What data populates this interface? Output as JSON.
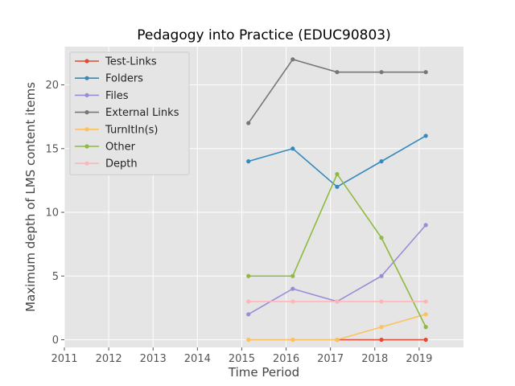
{
  "chart_data": {
    "type": "line",
    "title": "Pedagogy into Practice (EDUC90803)",
    "xlabel": "Time Period",
    "ylabel": "Maximum depth of LMS content items",
    "xlim": [
      2011,
      2020
    ],
    "ylim": [
      -0.6,
      23.0
    ],
    "x_ticks": [
      "2011",
      "2012",
      "2013",
      "2014",
      "2015",
      "2016",
      "2017",
      "2018",
      "2019"
    ],
    "y_ticks": [
      "0",
      "5",
      "10",
      "15",
      "20"
    ],
    "x": [
      2015.15,
      2016.15,
      2017.15,
      2018.15,
      2019.15
    ],
    "grid": true,
    "legend_position": "upper-left",
    "series": [
      {
        "name": "Test-Links",
        "color": "#e24a33",
        "values": [
          null,
          null,
          0,
          0,
          0
        ]
      },
      {
        "name": "Folders",
        "color": "#348abd",
        "values": [
          14,
          15,
          12,
          14,
          16
        ]
      },
      {
        "name": "Files",
        "color": "#988ed5",
        "values": [
          2,
          4,
          3,
          5,
          9
        ]
      },
      {
        "name": "External Links",
        "color": "#777777",
        "values": [
          17,
          22,
          21,
          21,
          21
        ]
      },
      {
        "name": "TurnItIn(s)",
        "color": "#fbc15e",
        "values": [
          0,
          0,
          0,
          1,
          2
        ]
      },
      {
        "name": "Other",
        "color": "#8eba42",
        "values": [
          5,
          5,
          13,
          8,
          1
        ]
      },
      {
        "name": "Depth",
        "color": "#ffb5b8",
        "values": [
          3,
          3,
          3,
          3,
          3
        ]
      }
    ]
  }
}
